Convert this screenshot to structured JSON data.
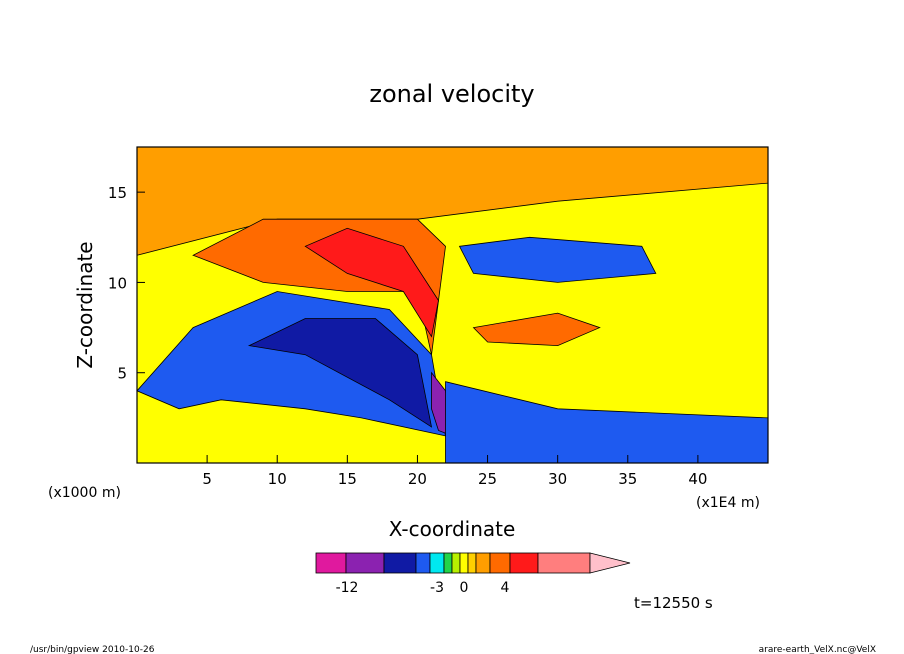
{
  "chart_data": {
    "type": "heatmap",
    "title": "zonal velocity",
    "xlabel": "X-coordinate",
    "ylabel": "Z-coordinate",
    "x_unit": "(x1E4 m)",
    "y_unit": "(x1000 m)",
    "xlim": [
      0,
      45
    ],
    "ylim": [
      0,
      17.5
    ],
    "x_ticks": [
      "5",
      "10",
      "15",
      "20",
      "25",
      "30",
      "35",
      "40"
    ],
    "y_ticks": [
      "5",
      "10",
      "15"
    ],
    "colorbar": {
      "labels": [
        "-12",
        "-3",
        "0",
        "4"
      ],
      "colors": [
        "#e0199e",
        "#8b22b0",
        "#101aa4",
        "#1e5af0",
        "#00e8f0",
        "#22d448",
        "#b8f000",
        "#ffff00",
        "#ffd000",
        "#ff9e00",
        "#ff6a00",
        "#ff1a1a",
        "#ff7e7e",
        "#ffc0cb"
      ]
    },
    "regions": [
      {
        "name": "upper-orange-band",
        "level": "2",
        "color": "#ff9e00",
        "points": [
          [
            0,
            11.5
          ],
          [
            10,
            13.5
          ],
          [
            20,
            13.5
          ],
          [
            30,
            14.5
          ],
          [
            45,
            15.5
          ],
          [
            45,
            17.5
          ],
          [
            0,
            17.5
          ]
        ]
      },
      {
        "name": "upper-jet",
        "level": "3",
        "color": "#ff6a00",
        "points": [
          [
            4,
            11.5
          ],
          [
            9,
            10
          ],
          [
            15,
            9.5
          ],
          [
            20,
            9.5
          ],
          [
            21,
            6
          ],
          [
            22,
            12
          ],
          [
            20,
            13.5
          ],
          [
            9,
            13.5
          ]
        ]
      },
      {
        "name": "upper-jet-core",
        "level": "4",
        "color": "#ff1a1a",
        "points": [
          [
            12,
            12
          ],
          [
            15,
            10.5
          ],
          [
            19,
            9.5
          ],
          [
            21,
            7
          ],
          [
            21.5,
            9
          ],
          [
            19,
            12
          ],
          [
            15,
            13
          ]
        ]
      },
      {
        "name": "upper-blue-pool",
        "level": "-4",
        "color": "#1e5af0",
        "points": [
          [
            23,
            12
          ],
          [
            28,
            12.5
          ],
          [
            36,
            12
          ],
          [
            37,
            10.5
          ],
          [
            30,
            10
          ],
          [
            24,
            10.5
          ]
        ]
      },
      {
        "name": "lower-right-orange",
        "level": "3",
        "color": "#ff6a00",
        "points": [
          [
            24,
            7.5
          ],
          [
            30,
            8.3
          ],
          [
            33,
            7.5
          ],
          [
            30,
            6.5
          ],
          [
            25,
            6.7
          ]
        ]
      },
      {
        "name": "left-descending-blue",
        "level": "-5",
        "color": "#1e5af0",
        "points": [
          [
            0,
            4
          ],
          [
            4,
            7.5
          ],
          [
            10,
            9.5
          ],
          [
            18,
            8.5
          ],
          [
            21,
            6
          ],
          [
            22,
            1.5
          ],
          [
            16,
            2.5
          ],
          [
            12,
            3
          ],
          [
            6,
            3.5
          ],
          [
            3,
            3
          ]
        ]
      },
      {
        "name": "deep-navy-core",
        "level": "-7",
        "color": "#101aa4",
        "points": [
          [
            8,
            6.5
          ],
          [
            12,
            8
          ],
          [
            17,
            8
          ],
          [
            20,
            6
          ],
          [
            21,
            2
          ],
          [
            18,
            3.5
          ],
          [
            12,
            6
          ]
        ]
      },
      {
        "name": "lee-purple",
        "level": "-10",
        "color": "#8b22b0",
        "points": [
          [
            21,
            5
          ],
          [
            22,
            4
          ],
          [
            22.5,
            1.5
          ],
          [
            21.5,
            1.8
          ],
          [
            21,
            3
          ]
        ]
      },
      {
        "name": "bottom-right-blue",
        "level": "-5",
        "color": "#1e5af0",
        "points": [
          [
            22,
            4.5
          ],
          [
            30,
            3
          ],
          [
            45,
            2.5
          ],
          [
            45,
            0
          ],
          [
            22,
            0
          ]
        ]
      }
    ]
  },
  "footer": {
    "time_label": "t=12550 s",
    "program": "/usr/bin/gpview   2010-10-26",
    "source": "arare-earth_VelX.nc@VelX"
  }
}
